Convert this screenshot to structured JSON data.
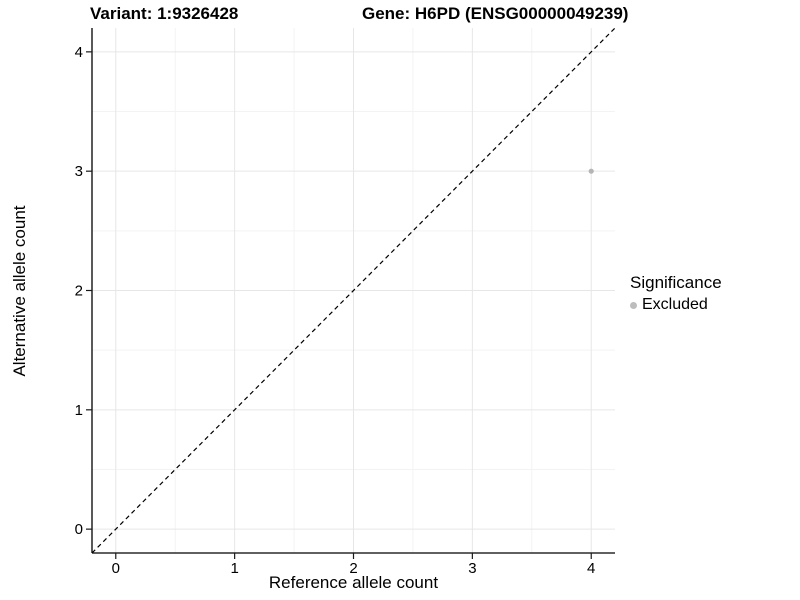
{
  "chart_data": {
    "type": "scatter",
    "title_left": "Variant: 1:9326428",
    "title_right": "Gene: H6PD (ENSG00000049239)",
    "xlabel": "Reference allele count",
    "ylabel": "Alternative allele count",
    "xlim": [
      -0.2,
      4.2
    ],
    "ylim": [
      -0.2,
      4.2
    ],
    "x_ticks": [
      0,
      1,
      2,
      3,
      4
    ],
    "y_ticks": [
      0,
      1,
      2,
      3,
      4
    ],
    "x_tick_labels": [
      "0",
      "1",
      "2",
      "3",
      "4"
    ],
    "y_tick_labels": [
      "0",
      "1",
      "2",
      "3",
      "4"
    ],
    "x_minor_ticks": [
      0.5,
      1.5,
      2.5,
      3.5
    ],
    "y_minor_ticks": [
      0.5,
      1.5,
      2.5,
      3.5
    ],
    "grid": "major+minor",
    "points": [
      {
        "x": 4,
        "y": 3,
        "series": "Excluded"
      }
    ],
    "reference_line": {
      "type": "identity",
      "from": -0.2,
      "to": 4.2,
      "style": "dashed",
      "color": "#000000"
    },
    "legend": {
      "title": "Significance",
      "position": "right",
      "items": [
        {
          "label": "Excluded",
          "color": "#bdbdbd"
        }
      ]
    },
    "colors": {
      "background": "#ffffff",
      "point": "#b5b5b5",
      "grid_major": "#e6e6e6",
      "grid_minor": "#f3f3f3",
      "axis_line": "#000000",
      "tick_mark": "#1a1a1a",
      "tick_label": "#000000"
    }
  }
}
